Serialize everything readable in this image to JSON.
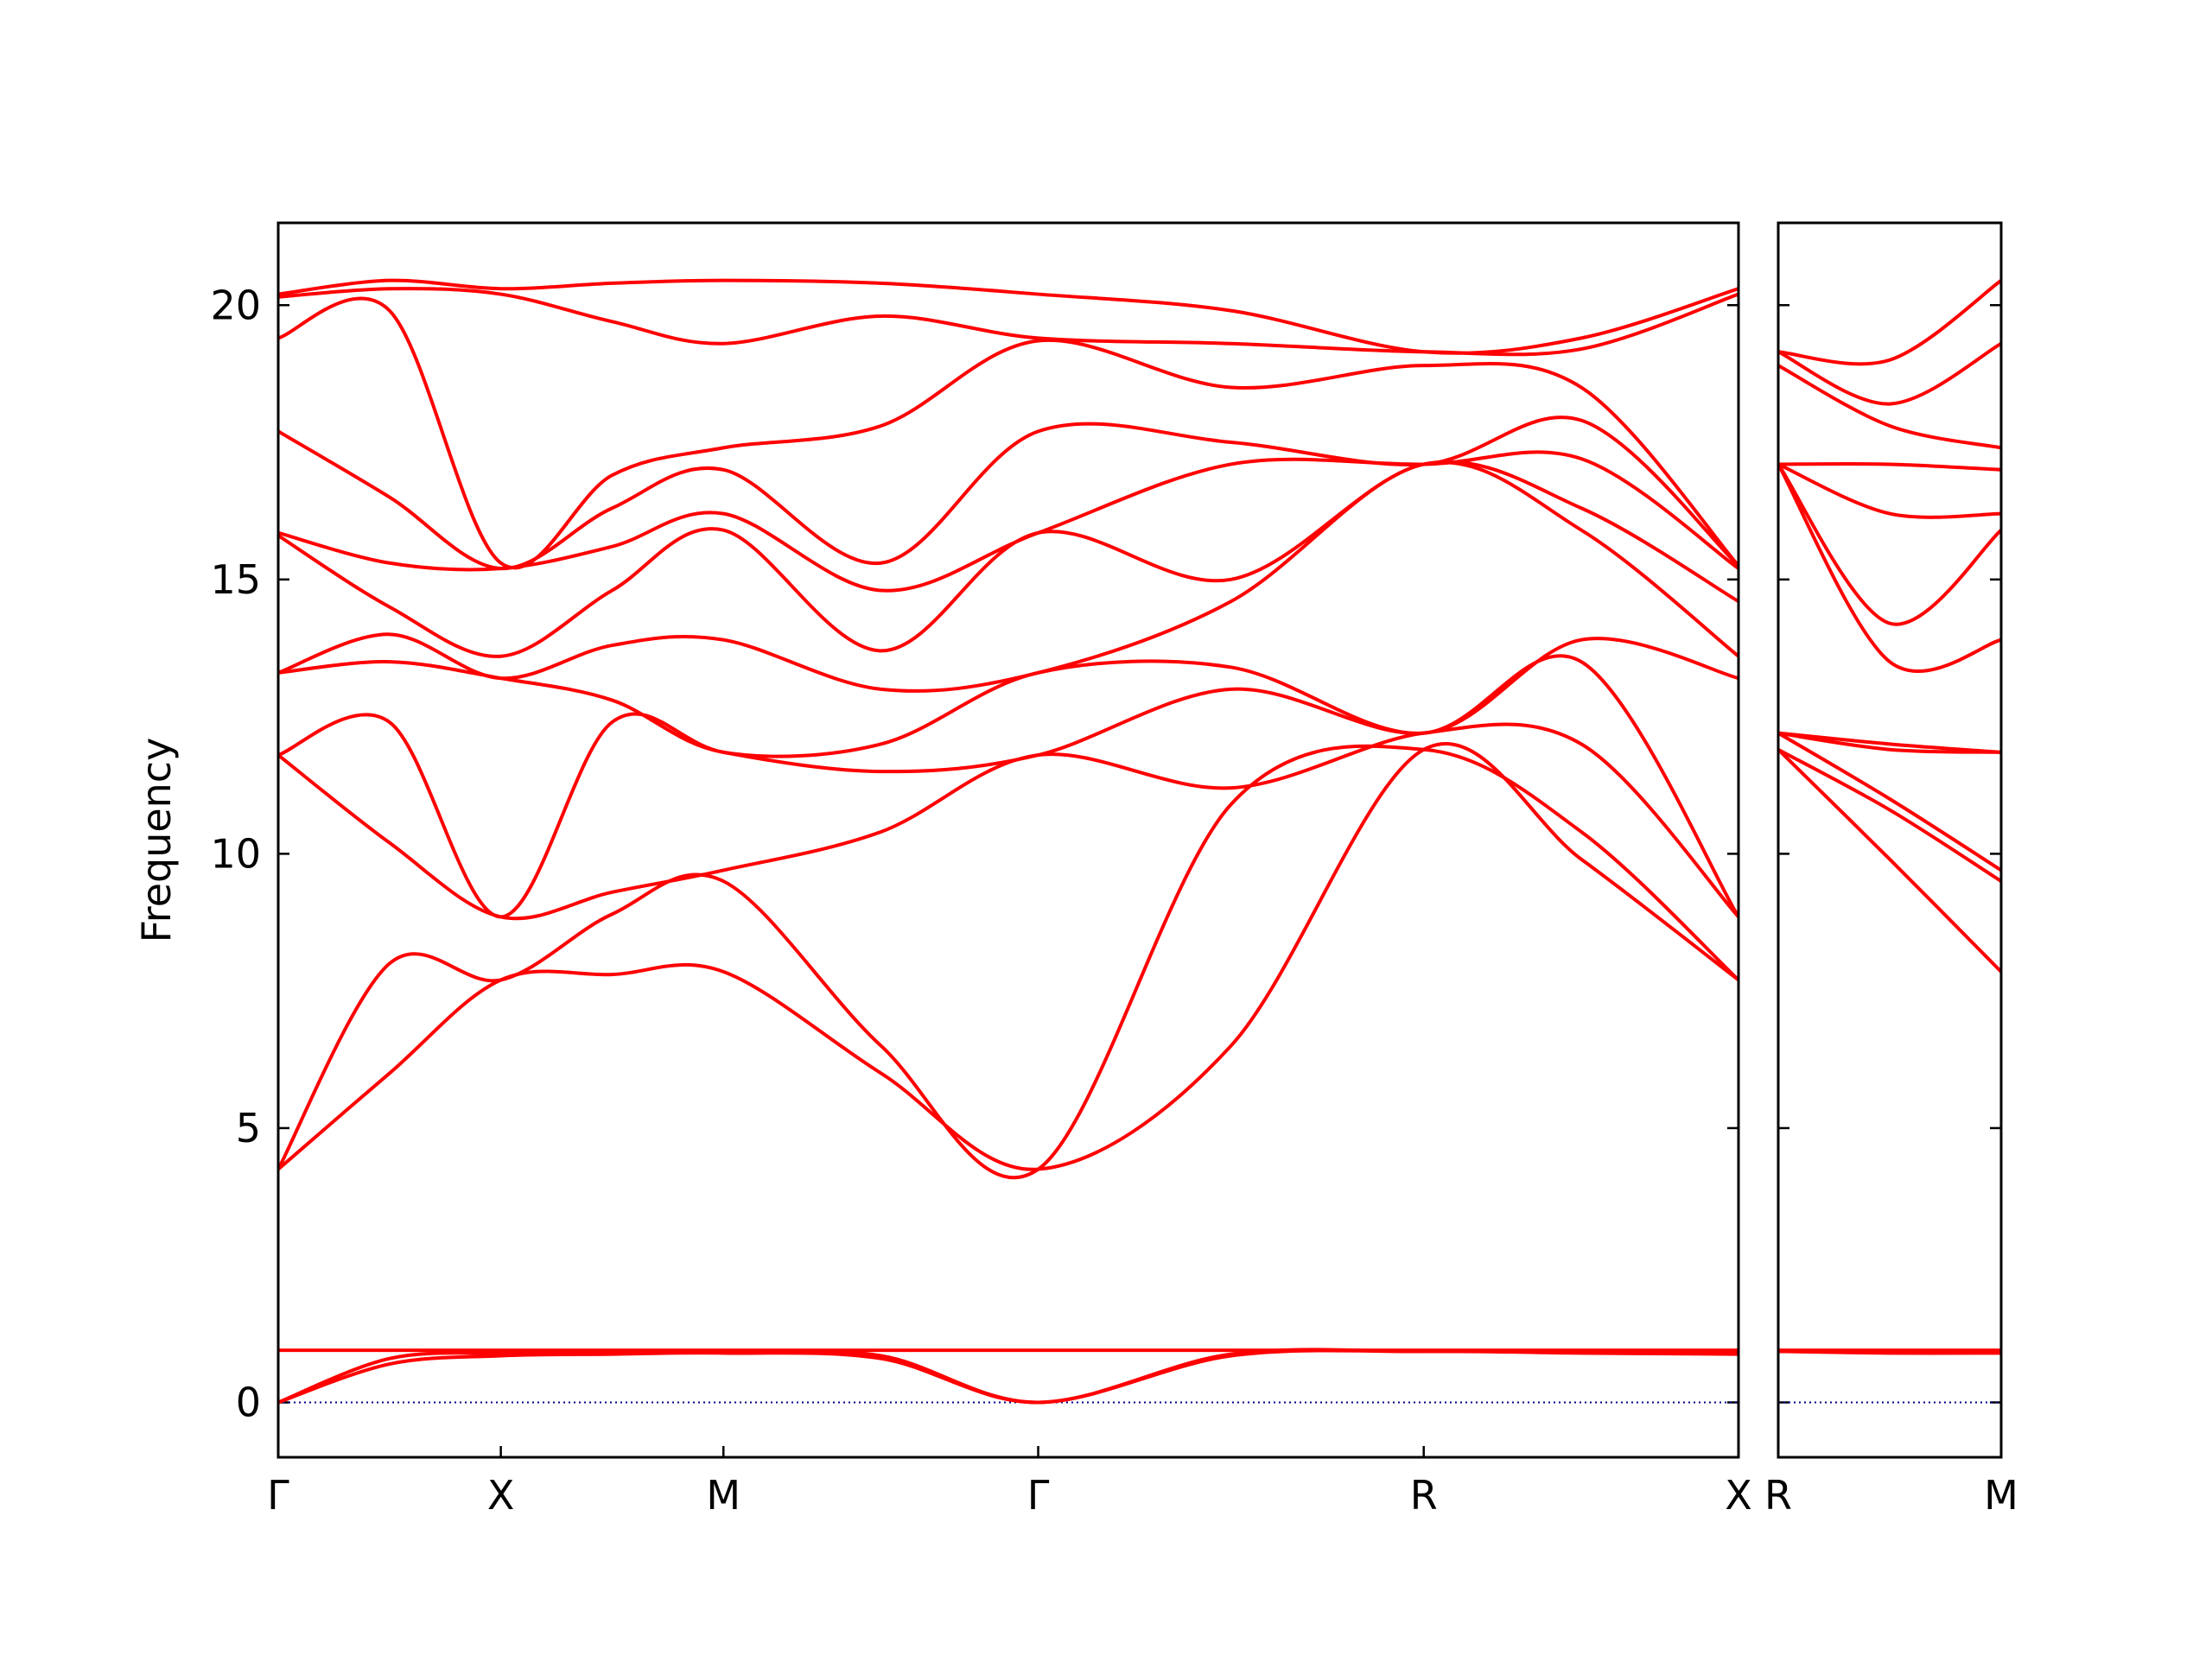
{
  "chart_data": [
    {
      "type": "line",
      "ylabel": "Frequency",
      "color": "#ff0000",
      "hline": {
        "value": 0,
        "color": "#00008b"
      },
      "xlim": [
        0,
        3.28
      ],
      "ylim": [
        -1,
        21.5
      ],
      "xticks": [
        {
          "value": 0,
          "label": "Γ"
        },
        {
          "value": 0.5,
          "label": "X"
        },
        {
          "value": 1.0,
          "label": "M"
        },
        {
          "value": 1.707,
          "label": "Γ"
        },
        {
          "value": 2.573,
          "label": "R"
        },
        {
          "value": 3.28,
          "label": "X"
        }
      ],
      "yticks": [
        0,
        5,
        10,
        15,
        20
      ],
      "ytick_labels": true,
      "x": [
        0,
        0.25,
        0.5,
        0.75,
        1.0,
        1.354,
        1.707,
        2.14,
        2.573,
        2.927,
        3.28
      ],
      "series": [
        {
          "values": [
            0,
            0.7,
            0.85,
            0.88,
            0.9,
            0.8,
            0,
            0.85,
            0.93,
            0.9,
            0.88
          ]
        },
        {
          "values": [
            0,
            0.8,
            0.9,
            0.9,
            0.92,
            0.85,
            0,
            0.88,
            0.93,
            0.92,
            0.9
          ]
        },
        {
          "values": [
            0.95,
            0.95,
            0.95,
            0.95,
            0.95,
            0.95,
            0.95,
            0.95,
            0.95,
            0.95,
            0.95
          ]
        },
        {
          "values": [
            4.25,
            6.0,
            7.7,
            7.8,
            7.85,
            6.0,
            4.25,
            6.5,
            11.9,
            9.9,
            7.7
          ]
        },
        {
          "values": [
            4.25,
            8.0,
            7.7,
            8.9,
            9.5,
            6.5,
            4.25,
            10.9,
            11.9,
            10.4,
            7.7
          ]
        },
        {
          "values": [
            11.8,
            10.2,
            8.85,
            9.3,
            9.7,
            10.4,
            11.8,
            11.2,
            12.2,
            12.0,
            8.85
          ]
        },
        {
          "values": [
            11.8,
            12.4,
            8.85,
            12.4,
            11.85,
            11.5,
            11.8,
            13.0,
            12.2,
            13.5,
            8.85
          ]
        },
        {
          "values": [
            13.3,
            13.5,
            13.2,
            12.8,
            11.85,
            12.0,
            13.3,
            13.4,
            12.2,
            13.9,
            13.2
          ]
        },
        {
          "values": [
            13.3,
            14.0,
            13.2,
            13.8,
            13.9,
            13.0,
            13.3,
            14.6,
            17.1,
            15.9,
            13.6
          ]
        },
        {
          "values": [
            15.8,
            14.5,
            13.6,
            14.8,
            15.9,
            13.7,
            15.85,
            15.0,
            17.1,
            16.3,
            14.6
          ]
        },
        {
          "values": [
            15.85,
            15.3,
            15.2,
            15.6,
            16.2,
            14.8,
            15.85,
            17.1,
            17.1,
            17.2,
            15.2
          ]
        },
        {
          "values": [
            17.7,
            16.5,
            15.2,
            16.3,
            17.0,
            15.3,
            17.7,
            17.5,
            17.1,
            17.9,
            15.25
          ]
        },
        {
          "values": [
            19.4,
            19.9,
            15.3,
            16.9,
            17.4,
            17.8,
            19.35,
            18.5,
            18.9,
            18.5,
            15.25
          ]
        },
        {
          "values": [
            20.15,
            20.3,
            20.2,
            19.7,
            19.3,
            19.8,
            19.4,
            19.3,
            19.15,
            19.2,
            20.2
          ]
        },
        {
          "values": [
            20.2,
            20.45,
            20.3,
            20.4,
            20.45,
            20.4,
            20.2,
            19.9,
            19.15,
            19.4,
            20.3
          ]
        }
      ]
    },
    {
      "type": "line",
      "color": "#ff0000",
      "hline": {
        "value": 0,
        "color": "#00008b"
      },
      "xlim": [
        0,
        0.5
      ],
      "ylim": [
        -1,
        21.5
      ],
      "xticks": [
        {
          "value": 0,
          "label": "R"
        },
        {
          "value": 0.5,
          "label": "M"
        }
      ],
      "yticks": [
        0,
        5,
        10,
        15,
        20
      ],
      "ytick_labels": false,
      "x": [
        0,
        0.25,
        0.5
      ],
      "series": [
        {
          "values": [
            0.93,
            0.9,
            0.9
          ]
        },
        {
          "values": [
            0.93,
            0.92,
            0.92
          ]
        },
        {
          "values": [
            0.95,
            0.95,
            0.95
          ]
        },
        {
          "values": [
            11.9,
            9.9,
            7.85
          ]
        },
        {
          "values": [
            11.9,
            10.8,
            9.5
          ]
        },
        {
          "values": [
            12.2,
            11.0,
            9.7
          ]
        },
        {
          "values": [
            12.2,
            11.9,
            11.85
          ]
        },
        {
          "values": [
            12.2,
            12.0,
            11.85
          ]
        },
        {
          "values": [
            17.1,
            13.5,
            13.9
          ]
        },
        {
          "values": [
            17.1,
            14.2,
            15.9
          ]
        },
        {
          "values": [
            17.1,
            16.2,
            16.2
          ]
        },
        {
          "values": [
            17.1,
            17.1,
            17.0
          ]
        },
        {
          "values": [
            18.9,
            17.8,
            17.4
          ]
        },
        {
          "values": [
            19.15,
            18.2,
            19.3
          ]
        },
        {
          "values": [
            19.15,
            19.0,
            20.45
          ]
        }
      ]
    }
  ]
}
